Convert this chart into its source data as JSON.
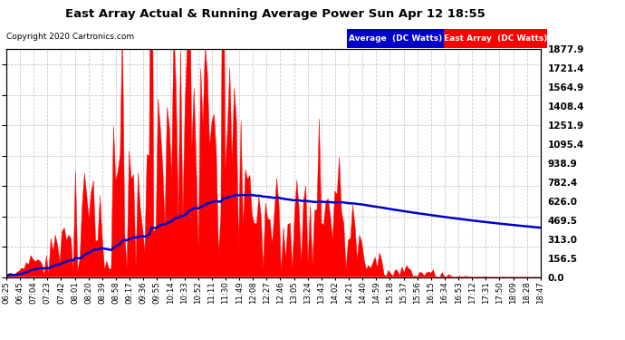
{
  "title": "East Array Actual & Running Average Power Sun Apr 12 18:55",
  "copyright": "Copyright 2020 Cartronics.com",
  "ylabel_right_values": [
    0.0,
    156.5,
    313.0,
    469.5,
    626.0,
    782.4,
    938.9,
    1095.4,
    1251.9,
    1408.4,
    1564.9,
    1721.4,
    1877.9
  ],
  "ymax": 1877.9,
  "ymin": 0.0,
  "background_color": "#ffffff",
  "plot_bg_color": "#ffffff",
  "grid_color": "#bbbbbb",
  "fill_color": "#ff0000",
  "line_color": "#0000cc",
  "legend_avg_bg": "#0000cc",
  "legend_avg_text": "Average  (DC Watts)",
  "legend_east_bg": "#ff0000",
  "legend_east_text": "East Array  (DC Watts)",
  "x_tick_labels": [
    "06:25",
    "06:45",
    "07:04",
    "07:23",
    "07:42",
    "08:01",
    "08:20",
    "08:39",
    "08:58",
    "09:17",
    "09:36",
    "09:55",
    "10:14",
    "10:33",
    "10:52",
    "11:11",
    "11:30",
    "11:49",
    "12:08",
    "12:27",
    "12:46",
    "13:05",
    "13:24",
    "13:43",
    "14:02",
    "14:21",
    "14:40",
    "14:59",
    "15:18",
    "15:37",
    "15:56",
    "16:15",
    "16:34",
    "16:53",
    "17:12",
    "17:31",
    "17:50",
    "18:09",
    "18:28",
    "18:47"
  ],
  "n_points": 240
}
